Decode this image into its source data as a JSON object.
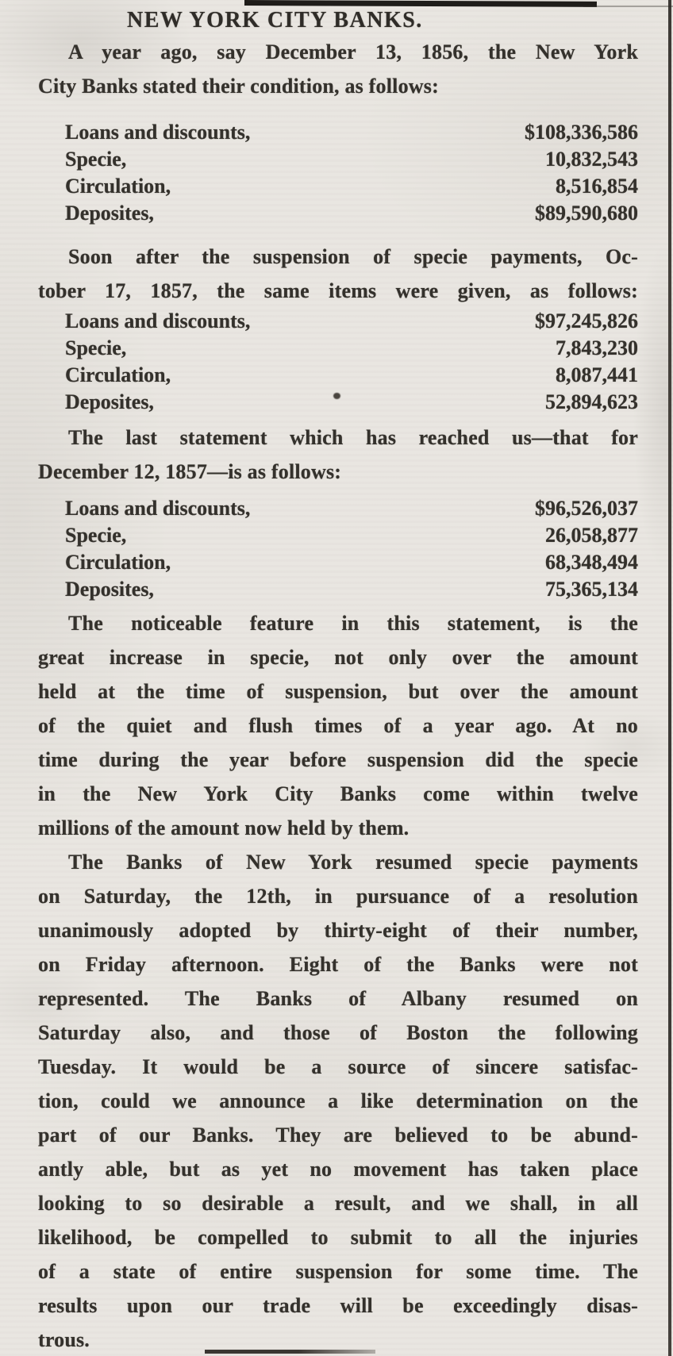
{
  "document": {
    "headline": "NEW YORK CITY BANKS.",
    "paper_color": "#e9e6e1",
    "ink_color": "#34312c",
    "paragraphs": {
      "p1": [
        "A year ago, say December 13, 1856, the New York",
        "City Banks stated their condition, as follows:"
      ],
      "p2": [
        "Soon after the suspension of specie payments, Oc-",
        "tober 17, 1857, the same items were given, as follows:"
      ],
      "p3": [
        "The last statement which has reached us—that for",
        "December 12, 1857—is as follows:"
      ],
      "p4": [
        "The noticeable feature in this statement, is the",
        "great increase in specie, not only over the amount",
        "held at the time of suspension, but over the amount",
        "of the quiet and flush times of a year ago.  At no",
        "time during the year before suspension did the specie",
        "in the New York City Banks come within twelve",
        "millions of the amount now held by them."
      ],
      "p5": [
        "The Banks of New York resumed specie payments",
        "on Saturday, the 12th, in  pursuance of a resolution",
        "unanimously adopted by thirty-eight of their number,",
        "on Friday afternoon.  Eight of the Banks were not",
        "represented.  The Banks of Albany resumed on",
        "Saturday also, and those of Boston the following",
        "Tuesday.  It would be a source of sincere satisfac-",
        "tion, could we announce a like determination on the",
        "part of our Banks.  They are believed to be abund-",
        "antly able, but as yet no movement has taken place",
        "looking to so desirable a result, and we shall, in all",
        "likelihood, be compelled to submit to all the injuries",
        "of a state of entire suspension for some time.  The",
        "results upon our trade will be exceedingly disas-",
        "trous."
      ]
    },
    "statements": {
      "dec_13_1856": {
        "rows": [
          {
            "label": "Loans and discounts,",
            "value": "$108,336,586"
          },
          {
            "label": "Specie,",
            "value": "10,832,543"
          },
          {
            "label": "Circulation,",
            "value": "8,516,854"
          },
          {
            "label": "Deposites,",
            "value": "$89,590,680"
          }
        ]
      },
      "oct_17_1857": {
        "rows": [
          {
            "label": "Loans and discounts,",
            "value": "$97,245,826"
          },
          {
            "label": "Specie,",
            "value": "7,843,230"
          },
          {
            "label": "Circulation,",
            "value": "8,087,441"
          },
          {
            "label": "Deposites,",
            "value": "52,894,623"
          }
        ]
      },
      "dec_12_1857": {
        "rows": [
          {
            "label": "Loans and discounts,",
            "value": "$96,526,037"
          },
          {
            "label": "Specie,",
            "value": "26,058,877"
          },
          {
            "label": "Circulation,",
            "value": "68,348,494"
          },
          {
            "label": "Deposites,",
            "value": "75,365,134"
          }
        ]
      }
    }
  }
}
